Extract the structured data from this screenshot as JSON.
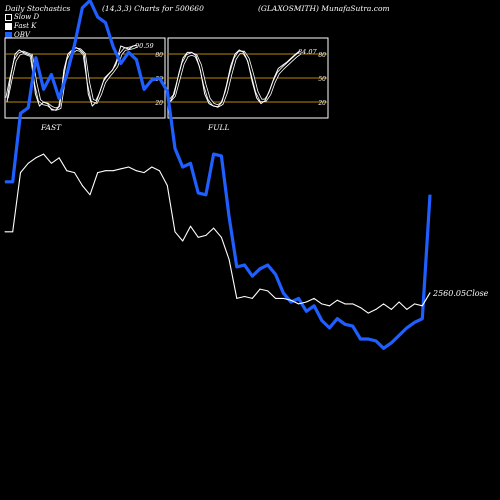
{
  "header": {
    "title": "Daily Stochastics",
    "params": "(14,3,3) Charts for 500660",
    "company": "(GLAXOSMITH) MunafaSutra.com"
  },
  "legend": [
    {
      "label": "Slow D",
      "color": "#000000"
    },
    {
      "label": "Fast K",
      "color": "#ffffff"
    },
    {
      "label": "OBV",
      "color": "#1f5fff"
    }
  ],
  "colors": {
    "background": "#000000",
    "obv": "#1f5fff",
    "price": "#ffffff",
    "level_line": "#b8860b",
    "panel_border": "#ffffff"
  },
  "panels": [
    {
      "label": "FAST",
      "last_value": "90.59",
      "levels": [
        "80",
        "50",
        "20"
      ],
      "k": [
        20,
        55,
        80,
        85,
        82,
        80,
        78,
        30,
        15,
        20,
        18,
        10,
        10,
        15,
        60,
        80,
        85,
        88,
        85,
        80,
        30,
        15,
        20,
        35,
        50,
        55,
        60,
        72,
        90,
        88,
        86,
        90,
        91
      ],
      "d": [
        25,
        50,
        72,
        80,
        82,
        80,
        78,
        45,
        22,
        18,
        17,
        13,
        11,
        13,
        45,
        72,
        82,
        86,
        85,
        80,
        45,
        22,
        20,
        30,
        45,
        52,
        58,
        65,
        80,
        86,
        87,
        88,
        90
      ]
    },
    {
      "label": "FULL",
      "last_value": "84.07",
      "levels": [
        "80",
        "50",
        "20"
      ],
      "k": [
        20,
        30,
        55,
        75,
        82,
        82,
        78,
        60,
        30,
        18,
        15,
        14,
        20,
        40,
        65,
        80,
        85,
        82,
        70,
        45,
        25,
        18,
        22,
        35,
        50,
        62,
        66,
        70,
        75,
        80,
        84
      ],
      "d": [
        22,
        28,
        48,
        68,
        78,
        80,
        78,
        66,
        42,
        24,
        17,
        15,
        18,
        32,
        55,
        74,
        82,
        82,
        74,
        55,
        33,
        22,
        22,
        30,
        45,
        56,
        62,
        67,
        72,
        77,
        81
      ]
    }
  ],
  "chart_data": {
    "type": "line",
    "title": "Daily Stochastics (14,3,3) Charts for 500660 (GLAXOSMITH)",
    "x_count": 56,
    "series": [
      {
        "name": "OBV",
        "values": [
          172,
          172,
          209,
          212,
          239,
          222,
          230,
          217,
          230,
          246,
          266,
          270,
          261,
          258,
          245,
          236,
          242,
          238,
          222,
          227,
          228,
          221,
          190,
          180,
          182,
          166,
          165,
          187,
          186,
          153,
          126,
          127,
          121,
          125,
          127,
          122,
          112,
          107,
          109,
          102,
          105,
          97,
          93,
          98,
          95,
          94,
          87,
          87,
          86,
          82,
          85,
          89,
          93,
          96,
          98,
          165
        ]
      },
      {
        "name": "Close",
        "values": [
          145,
          145,
          177,
          182,
          185,
          187,
          182,
          185,
          178,
          177,
          170,
          165,
          177,
          178,
          178,
          179,
          180,
          178,
          177,
          180,
          178,
          170,
          145,
          140,
          148,
          142,
          143,
          147,
          142,
          130,
          109,
          110,
          109,
          114,
          113,
          109,
          109,
          108,
          106,
          107,
          109,
          106,
          105,
          108,
          106,
          106,
          104,
          101,
          103,
          106,
          103,
          107,
          103,
          106,
          105,
          112
        ]
      }
    ],
    "last_close_label": "2560.05Close"
  }
}
